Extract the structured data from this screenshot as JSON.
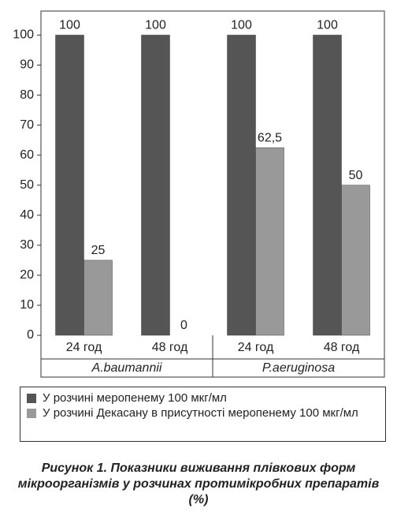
{
  "chart_data": {
    "type": "bar",
    "categories": [
      "24 год",
      "48 год",
      "24 год",
      "48 год"
    ],
    "groups": [
      "A.baumannii",
      "P.aeruginosa"
    ],
    "series": [
      {
        "name": "У розчині меропенему 100 мкг/мл",
        "color": "#555555",
        "values": [
          100,
          100,
          100,
          100
        ]
      },
      {
        "name": "У розчині Декасану в присутності меропенему 100 мкг/мл",
        "color": "#999999",
        "values": [
          25,
          0,
          62.5,
          50
        ],
        "value_labels": [
          "25",
          "0",
          "62,5",
          "50"
        ]
      }
    ],
    "ylim": [
      0,
      108
    ],
    "yticks": [
      0,
      10,
      20,
      30,
      40,
      50,
      60,
      70,
      80,
      90,
      100
    ],
    "caption": "Рисунок 1. Показники виживання плівкових форм мікроорганізмів у розчинах протимікробних препаратів (%)"
  }
}
